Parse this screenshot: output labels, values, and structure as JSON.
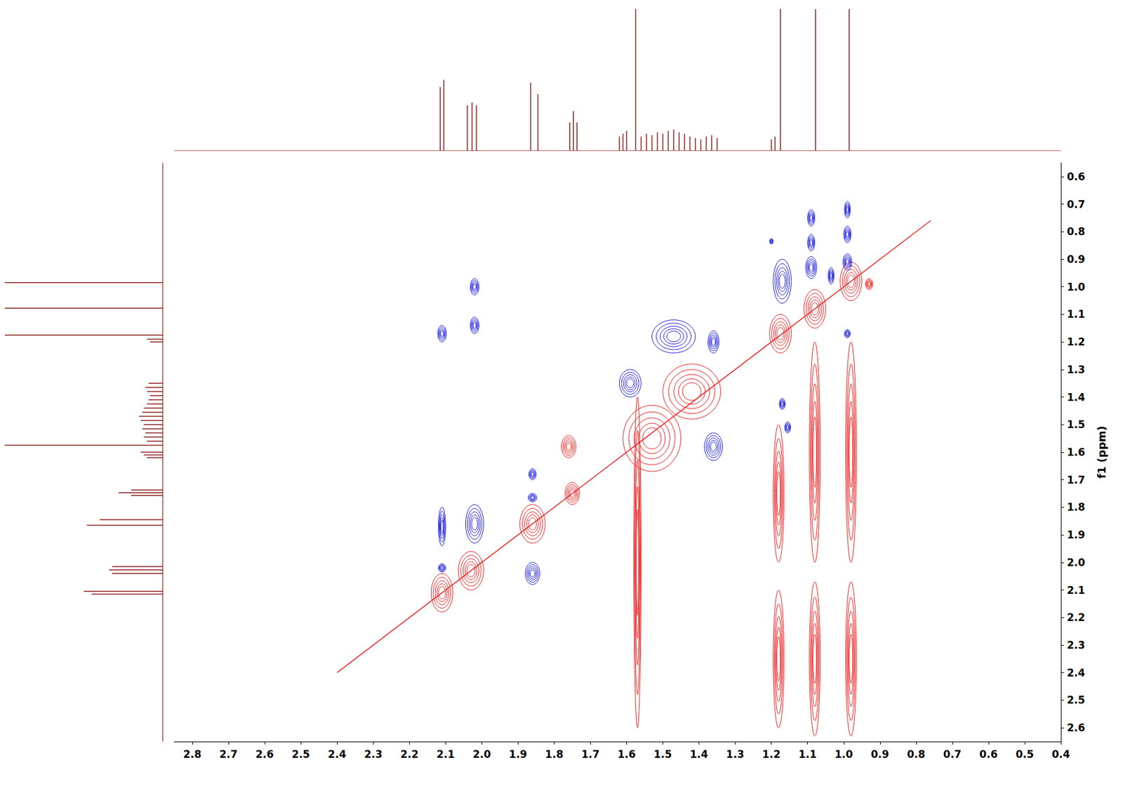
{
  "chart_data": {
    "type": "nmr2d",
    "y_label": "f1 (ppm)",
    "xlim": [
      2.85,
      0.4
    ],
    "ylim": [
      0.55,
      2.65
    ],
    "xticks": [
      2.8,
      2.7,
      2.6,
      2.5,
      2.4,
      2.3,
      2.2,
      2.1,
      {
        "value": 2,
        "label": "2.0"
      },
      1.9,
      1.8,
      1.7,
      1.6,
      1.5,
      1.4,
      1.3,
      1.2,
      1.1,
      {
        "value": 1,
        "label": "1.0"
      },
      0.9,
      0.8,
      0.7,
      0.6,
      0.5,
      0.4
    ],
    "yticks": [
      0.6,
      0.7,
      0.8,
      0.9,
      {
        "value": 1,
        "label": "1.0"
      },
      1.1,
      1.2,
      1.3,
      1.4,
      1.5,
      1.6,
      1.7,
      1.8,
      1.9,
      {
        "value": 2,
        "label": "2.0"
      },
      2.1,
      2.2,
      2.3,
      2.4,
      2.5,
      2.6
    ],
    "spectrum": {
      "color": "#8b1a1a",
      "ylim": [
        0,
        100
      ],
      "peaks": [
        [
          2.115,
          45
        ],
        [
          2.105,
          50
        ],
        [
          2.04,
          32
        ],
        [
          2.027,
          34
        ],
        [
          2.015,
          32
        ],
        [
          1.865,
          48
        ],
        [
          1.845,
          40
        ],
        [
          1.757,
          20
        ],
        [
          1.747,
          28
        ],
        [
          1.737,
          20
        ],
        [
          1.62,
          10
        ],
        [
          1.61,
          12
        ],
        [
          1.6,
          14
        ],
        [
          1.575,
          300
        ],
        [
          1.56,
          10
        ],
        [
          1.545,
          12
        ],
        [
          1.53,
          11
        ],
        [
          1.515,
          13
        ],
        [
          1.5,
          12
        ],
        [
          1.485,
          14
        ],
        [
          1.47,
          15
        ],
        [
          1.455,
          13
        ],
        [
          1.44,
          12
        ],
        [
          1.425,
          10
        ],
        [
          1.41,
          9
        ],
        [
          1.395,
          8
        ],
        [
          1.38,
          10
        ],
        [
          1.365,
          11
        ],
        [
          1.35,
          9
        ],
        [
          1.2,
          8
        ],
        [
          1.19,
          10
        ],
        [
          1.175,
          300
        ],
        [
          1.078,
          300
        ],
        [
          0.985,
          300
        ]
      ]
    },
    "series": [
      {
        "type": "contour",
        "color": "#ee1c1c",
        "values": [
          [
            2.11,
            2.11,
            0.03,
            0.07
          ],
          [
            2.03,
            2.03,
            0.035,
            0.07
          ],
          [
            1.86,
            1.86,
            0.035,
            0.07
          ],
          [
            1.75,
            1.75,
            0.02,
            0.04
          ],
          [
            1.76,
            1.58,
            0.02,
            0.04
          ],
          [
            1.53,
            1.55,
            0.08,
            0.12
          ],
          [
            1.42,
            1.38,
            0.08,
            0.1
          ],
          [
            1.175,
            1.17,
            0.03,
            0.07
          ],
          [
            1.08,
            1.08,
            0.03,
            0.07
          ],
          [
            0.98,
            0.98,
            0.03,
            0.07
          ],
          [
            0.93,
            0.99,
            0.01,
            0.02
          ],
          [
            1.18,
            1.75,
            0.015,
            0.25
          ],
          [
            1.08,
            1.6,
            0.015,
            0.4
          ],
          [
            0.98,
            1.6,
            0.015,
            0.4
          ],
          [
            1.18,
            2.35,
            0.015,
            0.25
          ],
          [
            1.08,
            2.35,
            0.015,
            0.28
          ],
          [
            0.98,
            2.35,
            0.015,
            0.28
          ],
          [
            1.57,
            2.0,
            0.01,
            0.6
          ]
        ]
      },
      {
        "type": "contour",
        "color": "#1a1ae0",
        "values": [
          [
            2.02,
            1.0,
            0.012,
            0.03
          ],
          [
            2.02,
            1.14,
            0.012,
            0.03
          ],
          [
            2.11,
            1.17,
            0.012,
            0.03
          ],
          [
            2.11,
            1.87,
            0.01,
            0.07
          ],
          [
            2.11,
            2.02,
            0.01,
            0.015
          ],
          [
            2.02,
            1.86,
            0.025,
            0.07
          ],
          [
            1.86,
            1.68,
            0.01,
            0.02
          ],
          [
            1.86,
            1.765,
            0.012,
            0.015
          ],
          [
            1.86,
            2.04,
            0.02,
            0.04
          ],
          [
            1.47,
            1.18,
            0.06,
            0.06
          ],
          [
            1.36,
            1.2,
            0.015,
            0.04
          ],
          [
            1.59,
            1.35,
            0.03,
            0.05
          ],
          [
            1.36,
            1.58,
            0.025,
            0.05
          ],
          [
            1.17,
            0.98,
            0.025,
            0.08
          ],
          [
            1.17,
            1.425,
            0.008,
            0.02
          ],
          [
            1.155,
            1.51,
            0.008,
            0.02
          ],
          [
            1.09,
            0.75,
            0.01,
            0.03
          ],
          [
            1.09,
            0.84,
            0.01,
            0.03
          ],
          [
            1.09,
            0.93,
            0.015,
            0.04
          ],
          [
            0.99,
            0.72,
            0.008,
            0.03
          ],
          [
            0.99,
            0.81,
            0.01,
            0.03
          ],
          [
            0.99,
            0.91,
            0.012,
            0.03
          ],
          [
            1.035,
            0.96,
            0.008,
            0.03
          ],
          [
            0.99,
            1.17,
            0.008,
            0.015
          ],
          [
            1.2,
            0.835,
            0.005,
            0.01
          ]
        ]
      },
      {
        "type": "line",
        "color": "#ee1c1c",
        "values": [
          [
            2.4,
            2.4
          ],
          [
            0.76,
            0.76
          ]
        ]
      }
    ]
  }
}
